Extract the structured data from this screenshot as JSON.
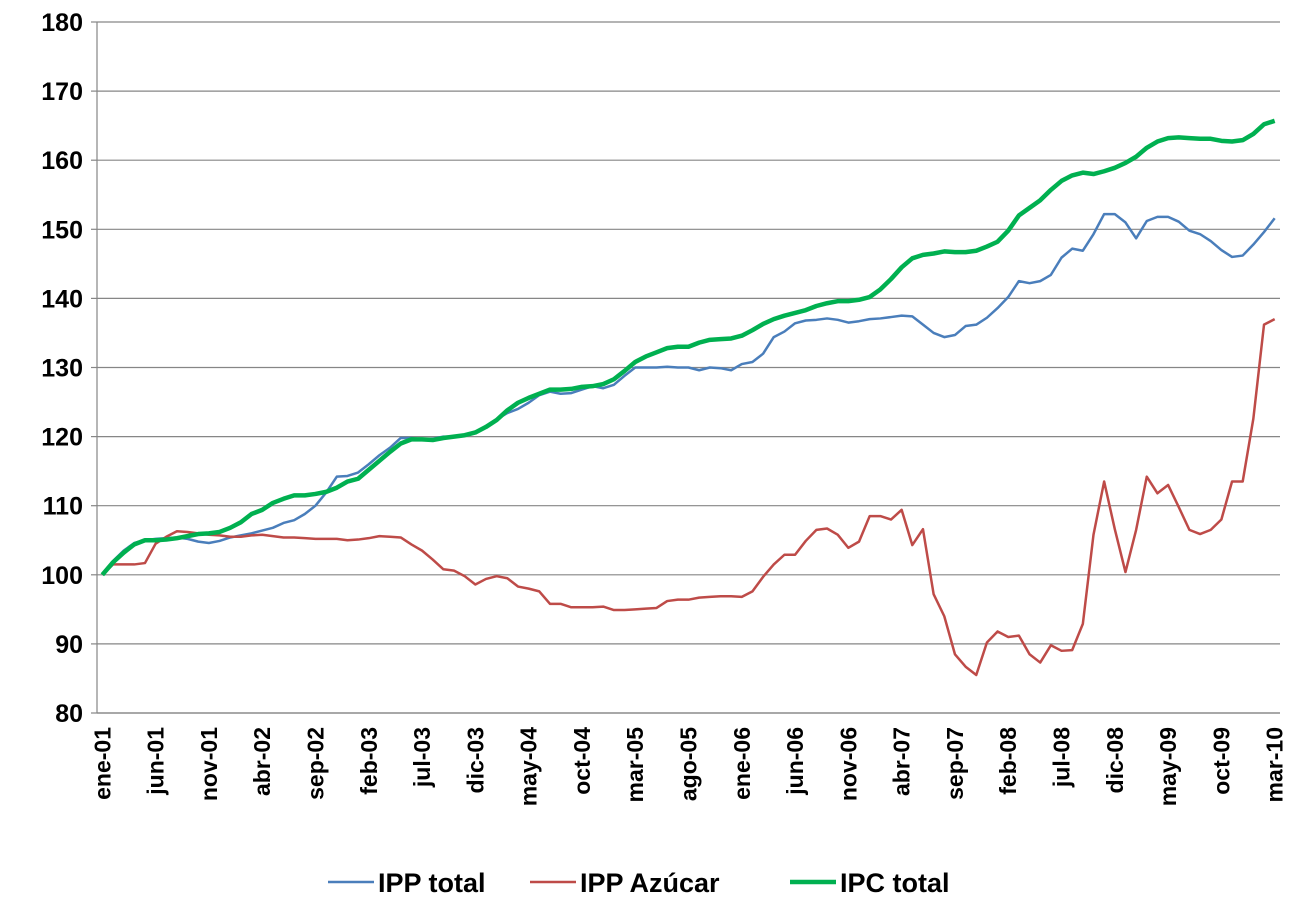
{
  "chart_data": {
    "type": "line",
    "categories": [
      "ene-01",
      null,
      null,
      null,
      null,
      "jun-01",
      null,
      null,
      null,
      null,
      "nov-01",
      null,
      null,
      null,
      null,
      "abr-02",
      null,
      null,
      null,
      null,
      "sep-02",
      null,
      null,
      null,
      null,
      "feb-03",
      null,
      null,
      null,
      null,
      "jul-03",
      null,
      null,
      null,
      null,
      "dic-03",
      null,
      null,
      null,
      null,
      "may-04",
      null,
      null,
      null,
      null,
      "oct-04",
      null,
      null,
      null,
      null,
      "mar-05",
      null,
      null,
      null,
      null,
      "ago-05",
      null,
      null,
      null,
      null,
      "ene-06",
      null,
      null,
      null,
      null,
      "jun-06",
      null,
      null,
      null,
      null,
      "nov-06",
      null,
      null,
      null,
      null,
      "abr-07",
      null,
      null,
      null,
      null,
      "sep-07",
      null,
      null,
      null,
      null,
      "feb-08",
      null,
      null,
      null,
      null,
      "jul-08",
      null,
      null,
      null,
      null,
      "dic-08",
      null,
      null,
      null,
      null,
      "may-09",
      null,
      null,
      null,
      null,
      "oct-09",
      null,
      null,
      null,
      null,
      "mar-10"
    ],
    "series": [
      {
        "name": "IPP total",
        "color": "#4a7ebb",
        "width": 2.5,
        "values": [
          100,
          102,
          103.5,
          104.6,
          105,
          105.2,
          105.3,
          105.4,
          105.2,
          104.8,
          104.6,
          104.9,
          105.4,
          105.7,
          106,
          106.4,
          106.8,
          107.5,
          107.9,
          108.8,
          110,
          111.9,
          114.2,
          114.3,
          114.8,
          116,
          117.3,
          118.4,
          119.8,
          119.8,
          119.6,
          119.7,
          120,
          120,
          120.2,
          120.6,
          121.4,
          122.5,
          123.4,
          124,
          124.9,
          126,
          126.5,
          126.2,
          126.3,
          126.8,
          127.3,
          127,
          127.5,
          128.8,
          130,
          130,
          130,
          130.1,
          130,
          130,
          129.6,
          130,
          129.9,
          129.6,
          130.5,
          130.8,
          132,
          134.4,
          135.2,
          136.4,
          136.8,
          136.9,
          137.1,
          136.9,
          136.5,
          136.7,
          137,
          137.1,
          137.3,
          137.5,
          137.4,
          136.2,
          135,
          134.4,
          134.7,
          136,
          136.2,
          137.2,
          138.6,
          140.2,
          142.5,
          142.2,
          142.5,
          143.4,
          145.9,
          147.2,
          146.9,
          149.3,
          152.2,
          152.2,
          151,
          148.7,
          151.2,
          151.8,
          151.8,
          151.1,
          149.8,
          149.3,
          148.3,
          147,
          146,
          146.2,
          147.8,
          149.6,
          151.6
        ]
      },
      {
        "name": "IPP Azúcar",
        "color": "#be4b48",
        "width": 2.5,
        "values": [
          100,
          101.5,
          101.5,
          101.5,
          101.7,
          104.5,
          105.5,
          106.3,
          106.2,
          106,
          105.8,
          105.7,
          105.5,
          105.5,
          105.7,
          105.8,
          105.6,
          105.4,
          105.4,
          105.3,
          105.2,
          105.2,
          105.2,
          105,
          105.1,
          105.3,
          105.6,
          105.5,
          105.4,
          104.4,
          103.5,
          102.2,
          100.8,
          100.6,
          99.8,
          98.6,
          99.4,
          99.8,
          99.5,
          98.3,
          98,
          97.6,
          95.8,
          95.8,
          95.3,
          95.3,
          95.3,
          95.4,
          94.9,
          94.9,
          95,
          95.1,
          95.2,
          96.2,
          96.4,
          96.4,
          96.7,
          96.8,
          96.9,
          96.9,
          96.8,
          97.6,
          99.7,
          101.5,
          102.9,
          102.9,
          104.9,
          106.5,
          106.7,
          105.8,
          103.9,
          104.8,
          108.5,
          108.5,
          108,
          109.4,
          104.3,
          106.6,
          97.2,
          94,
          88.5,
          86.7,
          85.5,
          90.2,
          91.8,
          91,
          91.2,
          88.5,
          87.3,
          89.8,
          89,
          89.1,
          92.9,
          105.8,
          113.5,
          106.6,
          100.4,
          106.5,
          114.2,
          111.8,
          113,
          109.8,
          106.5,
          105.9,
          106.5,
          108,
          113.5,
          113.5,
          122.6,
          136.2,
          137
        ]
      },
      {
        "name": "IPC total",
        "color": "#00b050",
        "width": 4.5,
        "values": [
          100,
          101.8,
          103.2,
          104.4,
          105,
          105,
          105.1,
          105.3,
          105.6,
          105.9,
          106,
          106.2,
          106.8,
          107.6,
          108.8,
          109.4,
          110.4,
          111,
          111.5,
          111.5,
          111.7,
          112,
          112.6,
          113.5,
          113.9,
          115.2,
          116.5,
          117.8,
          119,
          119.6,
          119.6,
          119.5,
          119.8,
          120,
          120.2,
          120.6,
          121.4,
          122.4,
          123.8,
          124.9,
          125.6,
          126.2,
          126.8,
          126.8,
          126.9,
          127.2,
          127.3,
          127.6,
          128.3,
          129.5,
          130.8,
          131.6,
          132.2,
          132.8,
          133,
          133,
          133.6,
          134,
          134.1,
          134.2,
          134.6,
          135.4,
          136.3,
          137,
          137.5,
          137.9,
          138.3,
          138.9,
          139.3,
          139.6,
          139.6,
          139.8,
          140.2,
          141.3,
          142.8,
          144.5,
          145.8,
          146.3,
          146.5,
          146.8,
          146.7,
          146.7,
          146.9,
          147.5,
          148.2,
          149.8,
          152,
          153.1,
          154.2,
          155.7,
          157,
          157.8,
          158.2,
          158,
          158.4,
          158.9,
          159.6,
          160.5,
          161.8,
          162.7,
          163.2,
          163.3,
          163.2,
          163.1,
          163.1,
          162.8,
          162.7,
          162.9,
          163.8,
          165.2,
          165.7
        ]
      }
    ],
    "ylim": [
      80,
      180
    ],
    "yticks": [
      80,
      90,
      100,
      110,
      120,
      130,
      140,
      150,
      160,
      170,
      180
    ],
    "grid": true,
    "legend": "bottom"
  }
}
